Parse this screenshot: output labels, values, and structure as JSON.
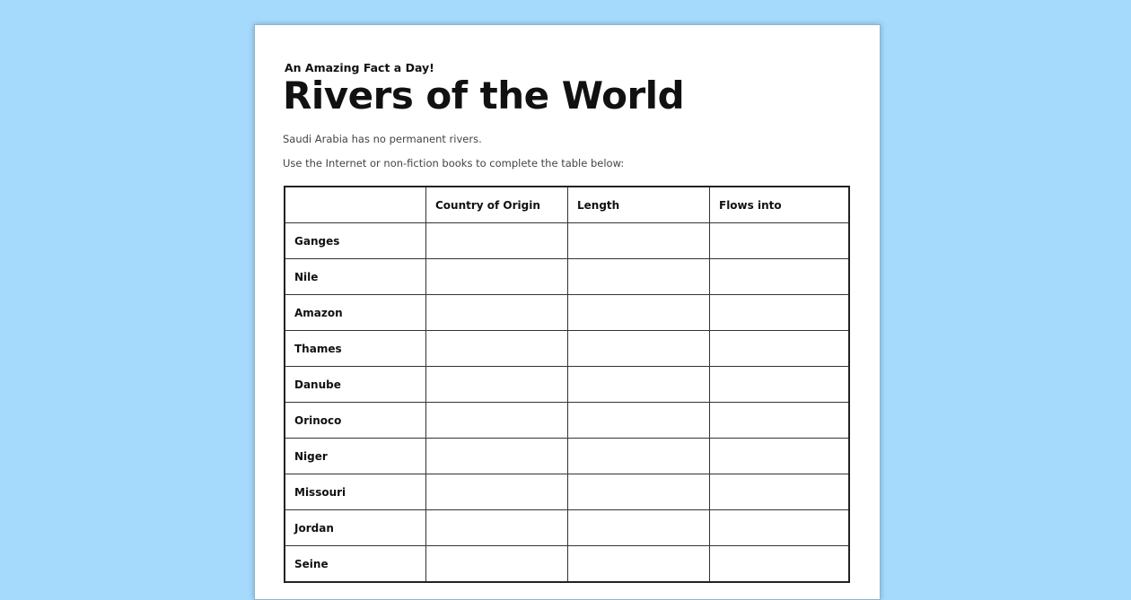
{
  "worksheet": {
    "kicker": "An Amazing Fact a Day!",
    "title": "Rivers of the World",
    "fact": "Saudi Arabia has no permanent rivers.",
    "instruction": "Use the Internet or non-fiction books to complete the table below:",
    "table": {
      "headers": [
        "",
        "Country of Origin",
        "Length",
        "Flows into"
      ],
      "rivers": [
        "Ganges",
        "Nile",
        "Amazon",
        "Thames",
        "Danube",
        "Orinoco",
        "Niger",
        "Missouri",
        "Jordan",
        "Seine"
      ]
    }
  }
}
